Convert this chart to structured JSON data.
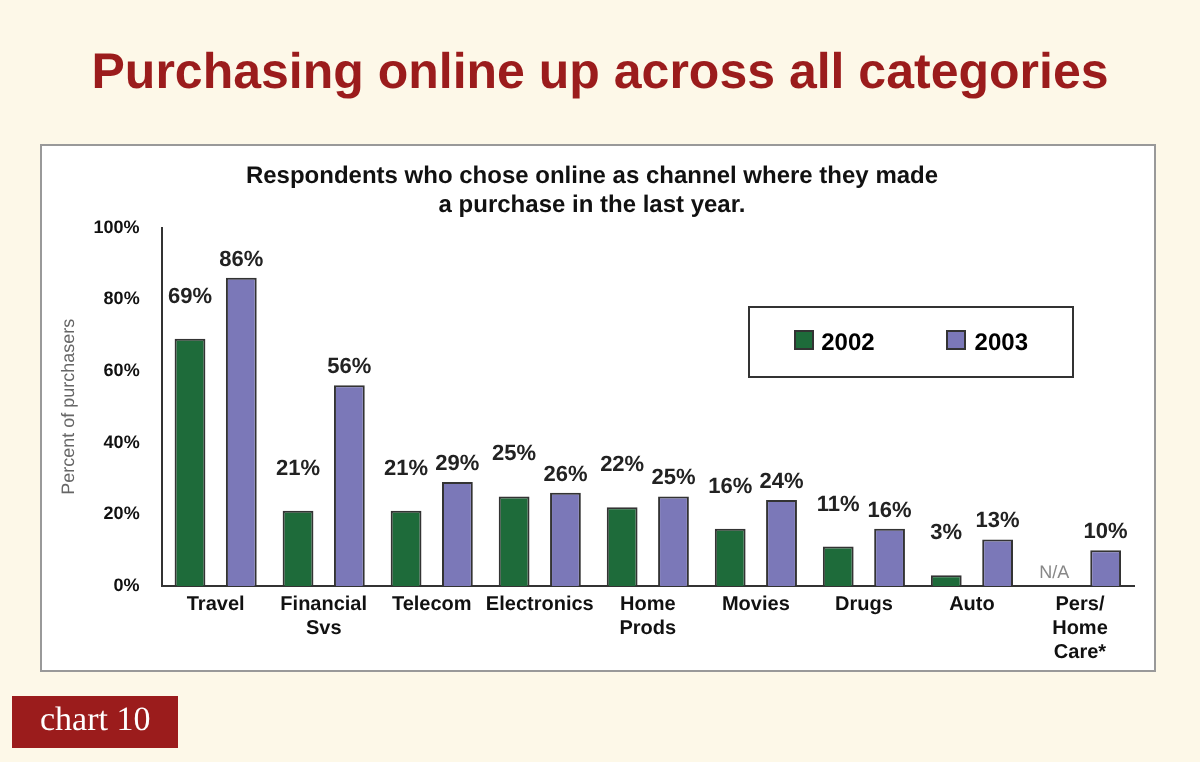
{
  "chart_data": {
    "type": "bar",
    "title": "Purchasing online up across all categories",
    "subtitle": "Respondents who chose online as channel where they made\na purchase in the last year.",
    "ylabel": "Percent of purchasers",
    "categories": [
      "Travel",
      "Financial Svs",
      "Telecom",
      "Electronics",
      "Home Prods",
      "Movies",
      "Drugs",
      "Auto",
      "Pers/ Home Care*"
    ],
    "series": [
      {
        "name": "2002",
        "color": "#1e6b3a",
        "values": [
          69,
          21,
          21,
          25,
          22,
          16,
          11,
          3,
          null
        ],
        "value_labels": [
          "69%",
          "21%",
          "21%",
          "25%",
          "22%",
          "16%",
          "11%",
          "3%",
          "N/A"
        ]
      },
      {
        "name": "2003",
        "color": "#7b78b8",
        "values": [
          86,
          56,
          29,
          26,
          25,
          24,
          16,
          13,
          10
        ],
        "value_labels": [
          "86%",
          "56%",
          "29%",
          "26%",
          "25%",
          "24%",
          "16%",
          "13%",
          "10%"
        ]
      }
    ],
    "ylim": [
      0,
      100
    ],
    "yticks": [
      {
        "value": 0,
        "label": "0%"
      },
      {
        "value": 20,
        "label": "20%"
      },
      {
        "value": 40,
        "label": "40%"
      },
      {
        "value": 60,
        "label": "60%"
      },
      {
        "value": 80,
        "label": "80%"
      },
      {
        "value": 100,
        "label": "100%"
      }
    ],
    "grid": false,
    "legend": "top right",
    "annotations": [
      "chart 10"
    ]
  }
}
